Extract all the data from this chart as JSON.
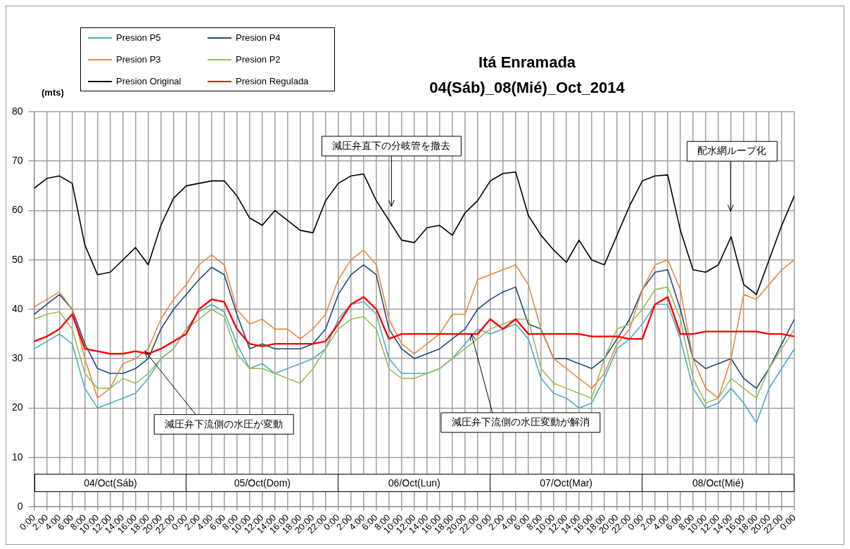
{
  "chart_data": {
    "type": "line",
    "title": "Itá Enramada",
    "subtitle": "04(Sáb)_08(Mié)_Oct_2014",
    "ylabel": "(mts)",
    "x": [
      "2014-10-04T00:00",
      "2014-10-04T02:00",
      "2014-10-04T04:00",
      "2014-10-04T06:00",
      "2014-10-04T08:00",
      "2014-10-04T10:00",
      "2014-10-04T12:00",
      "2014-10-04T14:00",
      "2014-10-04T16:00",
      "2014-10-04T18:00",
      "2014-10-04T20:00",
      "2014-10-04T22:00",
      "2014-10-05T00:00",
      "2014-10-05T02:00",
      "2014-10-05T04:00",
      "2014-10-05T06:00",
      "2014-10-05T08:00",
      "2014-10-05T10:00",
      "2014-10-05T12:00",
      "2014-10-05T14:00",
      "2014-10-05T16:00",
      "2014-10-05T18:00",
      "2014-10-05T20:00",
      "2014-10-05T22:00",
      "2014-10-06T00:00",
      "2014-10-06T02:00",
      "2014-10-06T04:00",
      "2014-10-06T06:00",
      "2014-10-06T08:00",
      "2014-10-06T10:00",
      "2014-10-06T12:00",
      "2014-10-06T14:00",
      "2014-10-06T16:00",
      "2014-10-06T18:00",
      "2014-10-06T20:00",
      "2014-10-06T22:00",
      "2014-10-07T00:00",
      "2014-10-07T02:00",
      "2014-10-07T04:00",
      "2014-10-07T06:00",
      "2014-10-07T08:00",
      "2014-10-07T10:00",
      "2014-10-07T12:00",
      "2014-10-07T14:00",
      "2014-10-07T16:00",
      "2014-10-07T18:00",
      "2014-10-07T20:00",
      "2014-10-07T22:00",
      "2014-10-08T00:00",
      "2014-10-08T02:00",
      "2014-10-08T04:00",
      "2014-10-08T06:00",
      "2014-10-08T08:00",
      "2014-10-08T10:00",
      "2014-10-08T12:00",
      "2014-10-08T14:00",
      "2014-10-08T16:00",
      "2014-10-08T18:00",
      "2014-10-08T20:00",
      "2014-10-08T22:00",
      "2014-10-09T00:00"
    ],
    "xlim": [
      "2014-10-04T00:00",
      "2014-10-09T00:00"
    ],
    "xticks": [
      {
        "value": "2014-10-04T00:00",
        "label": "0:00"
      },
      {
        "value": "2014-10-04T02:00",
        "label": "2:00"
      },
      {
        "value": "2014-10-04T04:00",
        "label": "4:00"
      },
      {
        "value": "2014-10-04T06:00",
        "label": "6:00"
      },
      {
        "value": "2014-10-04T08:00",
        "label": "8:00"
      },
      {
        "value": "2014-10-04T10:00",
        "label": "10:00"
      },
      {
        "value": "2014-10-04T12:00",
        "label": "12:00"
      },
      {
        "value": "2014-10-04T14:00",
        "label": "14:00"
      },
      {
        "value": "2014-10-04T16:00",
        "label": "16:00"
      },
      {
        "value": "2014-10-04T18:00",
        "label": "18:00"
      },
      {
        "value": "2014-10-04T20:00",
        "label": "20:00"
      },
      {
        "value": "2014-10-04T22:00",
        "label": "22:00"
      },
      {
        "value": "2014-10-05T00:00",
        "label": "0:00"
      },
      {
        "value": "2014-10-05T02:00",
        "label": "2:00"
      },
      {
        "value": "2014-10-05T04:00",
        "label": "4:00"
      },
      {
        "value": "2014-10-05T06:00",
        "label": "6:00"
      },
      {
        "value": "2014-10-05T08:00",
        "label": "8:00"
      },
      {
        "value": "2014-10-05T10:00",
        "label": "10:00"
      },
      {
        "value": "2014-10-05T12:00",
        "label": "12:00"
      },
      {
        "value": "2014-10-05T14:00",
        "label": "14:00"
      },
      {
        "value": "2014-10-05T16:00",
        "label": "16:00"
      },
      {
        "value": "2014-10-05T18:00",
        "label": "18:00"
      },
      {
        "value": "2014-10-05T20:00",
        "label": "20:00"
      },
      {
        "value": "2014-10-05T22:00",
        "label": "22:00"
      },
      {
        "value": "2014-10-06T00:00",
        "label": "0:00"
      },
      {
        "value": "2014-10-06T02:00",
        "label": "2:00"
      },
      {
        "value": "2014-10-06T04:00",
        "label": "4:00"
      },
      {
        "value": "2014-10-06T06:00",
        "label": "6:00"
      },
      {
        "value": "2014-10-06T08:00",
        "label": "8:00"
      },
      {
        "value": "2014-10-06T10:00",
        "label": "10:00"
      },
      {
        "value": "2014-10-06T12:00",
        "label": "12:00"
      },
      {
        "value": "2014-10-06T14:00",
        "label": "14:00"
      },
      {
        "value": "2014-10-06T16:00",
        "label": "16:00"
      },
      {
        "value": "2014-10-06T18:00",
        "label": "18:00"
      },
      {
        "value": "2014-10-06T20:00",
        "label": "20:00"
      },
      {
        "value": "2014-10-06T22:00",
        "label": "22:00"
      },
      {
        "value": "2014-10-07T00:00",
        "label": "0:00"
      },
      {
        "value": "2014-10-07T02:00",
        "label": "2:00"
      },
      {
        "value": "2014-10-07T04:00",
        "label": "4:00"
      },
      {
        "value": "2014-10-07T06:00",
        "label": "6:00"
      },
      {
        "value": "2014-10-07T08:00",
        "label": "8:00"
      },
      {
        "value": "2014-10-07T10:00",
        "label": "10:00"
      },
      {
        "value": "2014-10-07T12:00",
        "label": "12:00"
      },
      {
        "value": "2014-10-07T14:00",
        "label": "14:00"
      },
      {
        "value": "2014-10-07T16:00",
        "label": "16:00"
      },
      {
        "value": "2014-10-07T18:00",
        "label": "18:00"
      },
      {
        "value": "2014-10-07T20:00",
        "label": "20:00"
      },
      {
        "value": "2014-10-07T22:00",
        "label": "22:00"
      },
      {
        "value": "2014-10-08T00:00",
        "label": "0:00"
      },
      {
        "value": "2014-10-08T02:00",
        "label": "2:00"
      },
      {
        "value": "2014-10-08T04:00",
        "label": "4:00"
      },
      {
        "value": "2014-10-08T06:00",
        "label": "6:00"
      },
      {
        "value": "2014-10-08T08:00",
        "label": "8:00"
      },
      {
        "value": "2014-10-08T10:00",
        "label": "10:00"
      },
      {
        "value": "2014-10-08T12:00",
        "label": "12:00"
      },
      {
        "value": "2014-10-08T14:00",
        "label": "14:00"
      },
      {
        "value": "2014-10-08T16:00",
        "label": "16:00"
      },
      {
        "value": "2014-10-08T18:00",
        "label": "18:00"
      },
      {
        "value": "2014-10-08T20:00",
        "label": "20:00"
      },
      {
        "value": "2014-10-08T22:00",
        "label": "22:00"
      },
      {
        "value": "2014-10-09T00:00",
        "label": "0:00"
      }
    ],
    "ylim": [
      0,
      80
    ],
    "yticks": [
      0,
      10,
      20,
      30,
      40,
      50,
      60,
      70,
      80
    ],
    "grid": true,
    "legend": "top left",
    "marker": "none",
    "line_style": "solid",
    "series": [
      {
        "name": "Presion P5",
        "color": "#4bacc6",
        "values": [
          32,
          33.5,
          35,
          33,
          24,
          20,
          21,
          22,
          23,
          26,
          30,
          32,
          36,
          39.5,
          41,
          39.5,
          33,
          28,
          29,
          27,
          28,
          29,
          30,
          32,
          38,
          41,
          41.5,
          39,
          30,
          27,
          27,
          27,
          28,
          30,
          33,
          36,
          35,
          36,
          37,
          34,
          26,
          23,
          22,
          20,
          21,
          26,
          32,
          34,
          37,
          41,
          41,
          34,
          24,
          20,
          21,
          24,
          21,
          17,
          24,
          28,
          32
        ]
      },
      {
        "name": "Presion P4",
        "color": "#1f497d",
        "values": [
          39,
          41,
          43,
          40,
          33,
          28,
          27,
          27,
          28,
          30,
          36,
          40,
          43,
          46,
          48.5,
          47,
          39,
          32,
          33,
          32,
          32,
          32,
          33,
          36,
          43,
          47,
          49,
          47,
          36,
          32,
          30,
          31,
          32,
          34,
          36,
          40,
          42,
          43.5,
          44.5,
          37,
          36,
          30,
          30,
          29,
          28,
          30,
          34,
          38,
          44,
          47.5,
          48,
          40,
          30,
          28,
          29,
          30,
          26,
          24,
          28,
          33,
          38
        ]
      },
      {
        "name": "Presion P3",
        "color": "#e8893c",
        "values": [
          40.5,
          42,
          43.5,
          40,
          30,
          22,
          24,
          29,
          30,
          32,
          38,
          42,
          45,
          49,
          51,
          49,
          40,
          37,
          38,
          36,
          36,
          34,
          36,
          39,
          46,
          50,
          52,
          49,
          38,
          33,
          31,
          33,
          35,
          39,
          39,
          46,
          47,
          48,
          49,
          45,
          36,
          30,
          28,
          26,
          24,
          27,
          33,
          36,
          44,
          49,
          50,
          44,
          30,
          24,
          22,
          30,
          43,
          42,
          45,
          48,
          50
        ]
      },
      {
        "name": "Presion P2",
        "color": "#9bbb59",
        "values": [
          38,
          39,
          39.5,
          36,
          27,
          24,
          24,
          26,
          25,
          27,
          30,
          32,
          36,
          38,
          40,
          38.5,
          31,
          28,
          28,
          27,
          26,
          25,
          28,
          32,
          36,
          38,
          38.5,
          36,
          28,
          26,
          26,
          27,
          28,
          30,
          32,
          34,
          36,
          37,
          38,
          38,
          28,
          25,
          24,
          23,
          22,
          30,
          36,
          37,
          40,
          44,
          44.5,
          38,
          26,
          21,
          22,
          26,
          24,
          22,
          28,
          32,
          36
        ]
      },
      {
        "name": "Presion Original",
        "color": "#000000",
        "values": [
          64.5,
          66.5,
          67,
          65.5,
          53,
          47,
          47.5,
          50,
          52.5,
          49,
          57,
          62.5,
          65,
          65.5,
          66,
          66,
          63,
          58.5,
          57,
          60,
          58,
          56,
          55.5,
          62,
          65.5,
          67,
          67.4,
          62,
          58,
          54,
          53.5,
          56.5,
          57,
          55,
          59.5,
          62,
          66,
          67.5,
          67.8,
          59,
          55,
          52,
          49.5,
          54,
          50,
          49,
          55,
          61,
          66,
          67,
          67.2,
          56,
          48,
          47.5,
          49,
          54.7,
          45,
          43,
          50,
          57,
          63
        ]
      },
      {
        "name": "Presion Regulada",
        "color": "#ff0000",
        "values": [
          33.5,
          34.5,
          36,
          39,
          32,
          31.5,
          31,
          31,
          31.5,
          31,
          32,
          33.5,
          35,
          40,
          42,
          41.5,
          36,
          33,
          32.5,
          33,
          33,
          33,
          33,
          33.5,
          37,
          41,
          42.5,
          40,
          34,
          35,
          35,
          35,
          35,
          35,
          35,
          35,
          38,
          36,
          38,
          35,
          35,
          35,
          35,
          35,
          34.5,
          34.5,
          34.5,
          34,
          34,
          41,
          42.5,
          35,
          35,
          35.5,
          35.5,
          35.5,
          35.5,
          35.5,
          35,
          35,
          34.5
        ]
      }
    ],
    "annotations": [
      "減圧弁直下の分岐管を撤去",
      "配水網ループ化",
      {
        "text": "減圧弁下流側の水圧が変動",
        "x": "2014-10-04T17:30",
        "y": 31.5
      },
      {
        "text": "減圧弁下流側の水圧変動が解消",
        "x": "2014-10-06T21:00",
        "y": 35
      },
      "04/Oct(Sáb)",
      "05/Oct(Dom)",
      "06/Oct(Lun)",
      "07/Oct(Mar)",
      "08/Oct(Mié)"
    ]
  }
}
